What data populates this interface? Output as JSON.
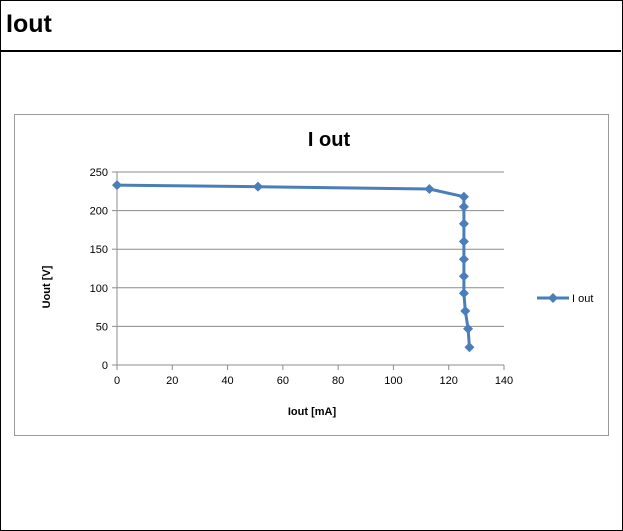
{
  "header": {
    "title": "Iout"
  },
  "chart_data": {
    "type": "scatter",
    "title": "I out",
    "xlabel": "Iout [mA]",
    "ylabel": "Uout [V]",
    "xlim": [
      0,
      140
    ],
    "ylim": [
      0,
      250
    ],
    "xticks": [
      "0",
      "20",
      "40",
      "60",
      "80",
      "100",
      "120",
      "140"
    ],
    "yticks": [
      "0",
      "50",
      "100",
      "150",
      "200",
      "250"
    ],
    "grid": "horizontal",
    "legend": "right",
    "series": [
      {
        "name": "I out",
        "color": "#4a7ebb",
        "marker": "diamond",
        "connected": true,
        "x": [
          0,
          51,
          113,
          125.5,
          125.5,
          125.5,
          125.5,
          125.5,
          125.5,
          125.5,
          126,
          127,
          127.5
        ],
        "y": [
          233,
          231,
          228,
          218,
          205,
          183,
          160,
          137,
          115,
          93,
          70,
          47,
          23
        ]
      }
    ]
  }
}
